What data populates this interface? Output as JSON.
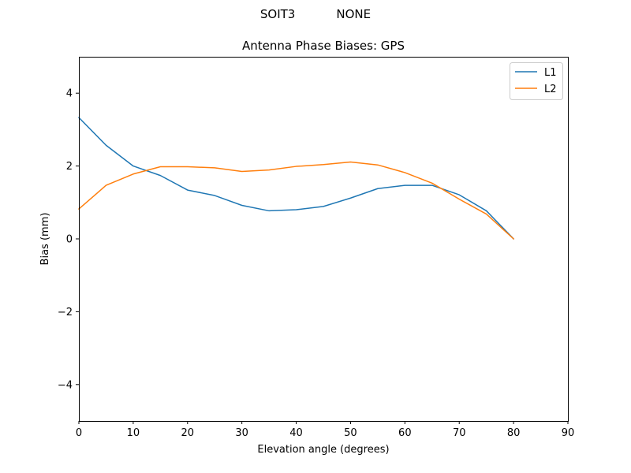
{
  "header": {
    "left": "SOIT3",
    "right": "NONE"
  },
  "chart_data": {
    "type": "line",
    "title": "Antenna Phase Biases: GPS",
    "xlabel": "Elevation angle (degrees)",
    "ylabel": "Bias (mm)",
    "xlim": [
      0,
      90
    ],
    "ylim": [
      -5,
      5
    ],
    "xticks": [
      0,
      10,
      20,
      30,
      40,
      50,
      60,
      70,
      80,
      90
    ],
    "yticks": [
      -4,
      -2,
      0,
      2,
      4
    ],
    "ytick_labels": [
      "−4",
      "−2",
      "0",
      "2",
      "4"
    ],
    "grid": false,
    "legend_position": "upper right",
    "x": [
      0,
      5,
      10,
      15,
      20,
      25,
      30,
      35,
      40,
      45,
      50,
      55,
      60,
      65,
      70,
      75,
      80
    ],
    "series": [
      {
        "name": "L1",
        "color": "#1f77b4",
        "values": [
          3.33,
          2.57,
          2.0,
          1.74,
          1.34,
          1.19,
          0.92,
          0.77,
          0.8,
          0.89,
          1.12,
          1.38,
          1.47,
          1.47,
          1.21,
          0.77,
          0.0
        ]
      },
      {
        "name": "L2",
        "color": "#ff7f0e",
        "values": [
          0.82,
          1.47,
          1.78,
          1.98,
          1.98,
          1.95,
          1.85,
          1.89,
          1.99,
          2.04,
          2.11,
          2.03,
          1.82,
          1.53,
          1.09,
          0.68,
          0.0
        ]
      }
    ]
  }
}
